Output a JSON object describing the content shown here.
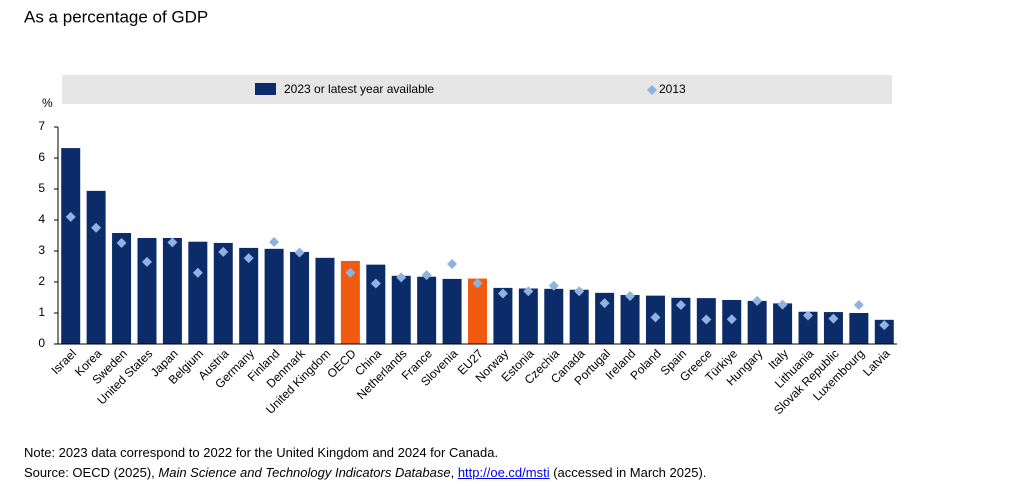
{
  "chart_data": {
    "type": "bar",
    "title": "As a percentage of GDP",
    "y_unit": "%",
    "categories": [
      "Israel",
      "Korea",
      "Sweden",
      "United States",
      "Japan",
      "Belgium",
      "Austria",
      "Germany",
      "Finland",
      "Denmark",
      "United Kingdom",
      "OECD",
      "China",
      "Netherlands",
      "France",
      "Slovenia",
      "EU27",
      "Norway",
      "Estonia",
      "Czechia",
      "Canada",
      "Portugal",
      "Ireland",
      "Poland",
      "Spain",
      "Greece",
      "Türkiye",
      "Hungary",
      "Italy",
      "Lithuania",
      "Slovak Republic",
      "Luxembourg",
      "Latvia"
    ],
    "series": [
      {
        "name": "2023 or latest year available",
        "color": "#0b2c69",
        "colors": [
          "#0b2c69",
          "#0b2c69",
          "#0b2c69",
          "#0b2c69",
          "#0b2c69",
          "#0b2c69",
          "#0b2c69",
          "#0b2c69",
          "#0b2c69",
          "#0b2c69",
          "#0b2c69",
          "#f25a0f",
          "#0b2c69",
          "#0b2c69",
          "#0b2c69",
          "#0b2c69",
          "#f25a0f",
          "#0b2c69",
          "#0b2c69",
          "#0b2c69",
          "#0b2c69",
          "#0b2c69",
          "#0b2c69",
          "#0b2c69",
          "#0b2c69",
          "#0b2c69",
          "#0b2c69",
          "#0b2c69",
          "#0b2c69",
          "#0b2c69",
          "#0b2c69",
          "#0b2c69",
          "#0b2c69"
        ],
        "values": [
          6.32,
          4.94,
          3.58,
          3.42,
          3.42,
          3.3,
          3.26,
          3.1,
          3.07,
          2.97,
          2.78,
          2.68,
          2.56,
          2.2,
          2.17,
          2.1,
          2.11,
          1.81,
          1.79,
          1.78,
          1.75,
          1.65,
          1.58,
          1.56,
          1.49,
          1.48,
          1.42,
          1.39,
          1.31,
          1.04,
          1.03,
          1.0,
          0.78
        ]
      },
      {
        "name": "2013",
        "color": "#8fb3e0",
        "marker": "diamond",
        "values": [
          4.1,
          3.75,
          3.26,
          2.65,
          3.28,
          2.3,
          2.97,
          2.77,
          3.29,
          2.95,
          null,
          2.3,
          1.95,
          2.15,
          2.22,
          2.58,
          1.96,
          1.63,
          1.7,
          1.88,
          1.7,
          1.32,
          1.55,
          0.86,
          1.26,
          0.79,
          0.8,
          1.39,
          1.27,
          0.92,
          0.82,
          1.26,
          0.61
        ]
      }
    ],
    "ylim": [
      0,
      7
    ],
    "yticks": [
      0,
      1,
      2,
      3,
      4,
      5,
      6,
      7
    ],
    "grid": false,
    "legend": "top"
  },
  "footer": {
    "note": "Note: 2023 data correspond to 2022 for the United Kingdom and 2024 for Canada.",
    "source_prefix": "Source: OECD (2025), ",
    "source_title": "Main Science and Technology Indicators Database",
    "source_sep": ", ",
    "source_link": "http://oe.cd/msti",
    "source_suffix": " (accessed in March 2025)."
  }
}
